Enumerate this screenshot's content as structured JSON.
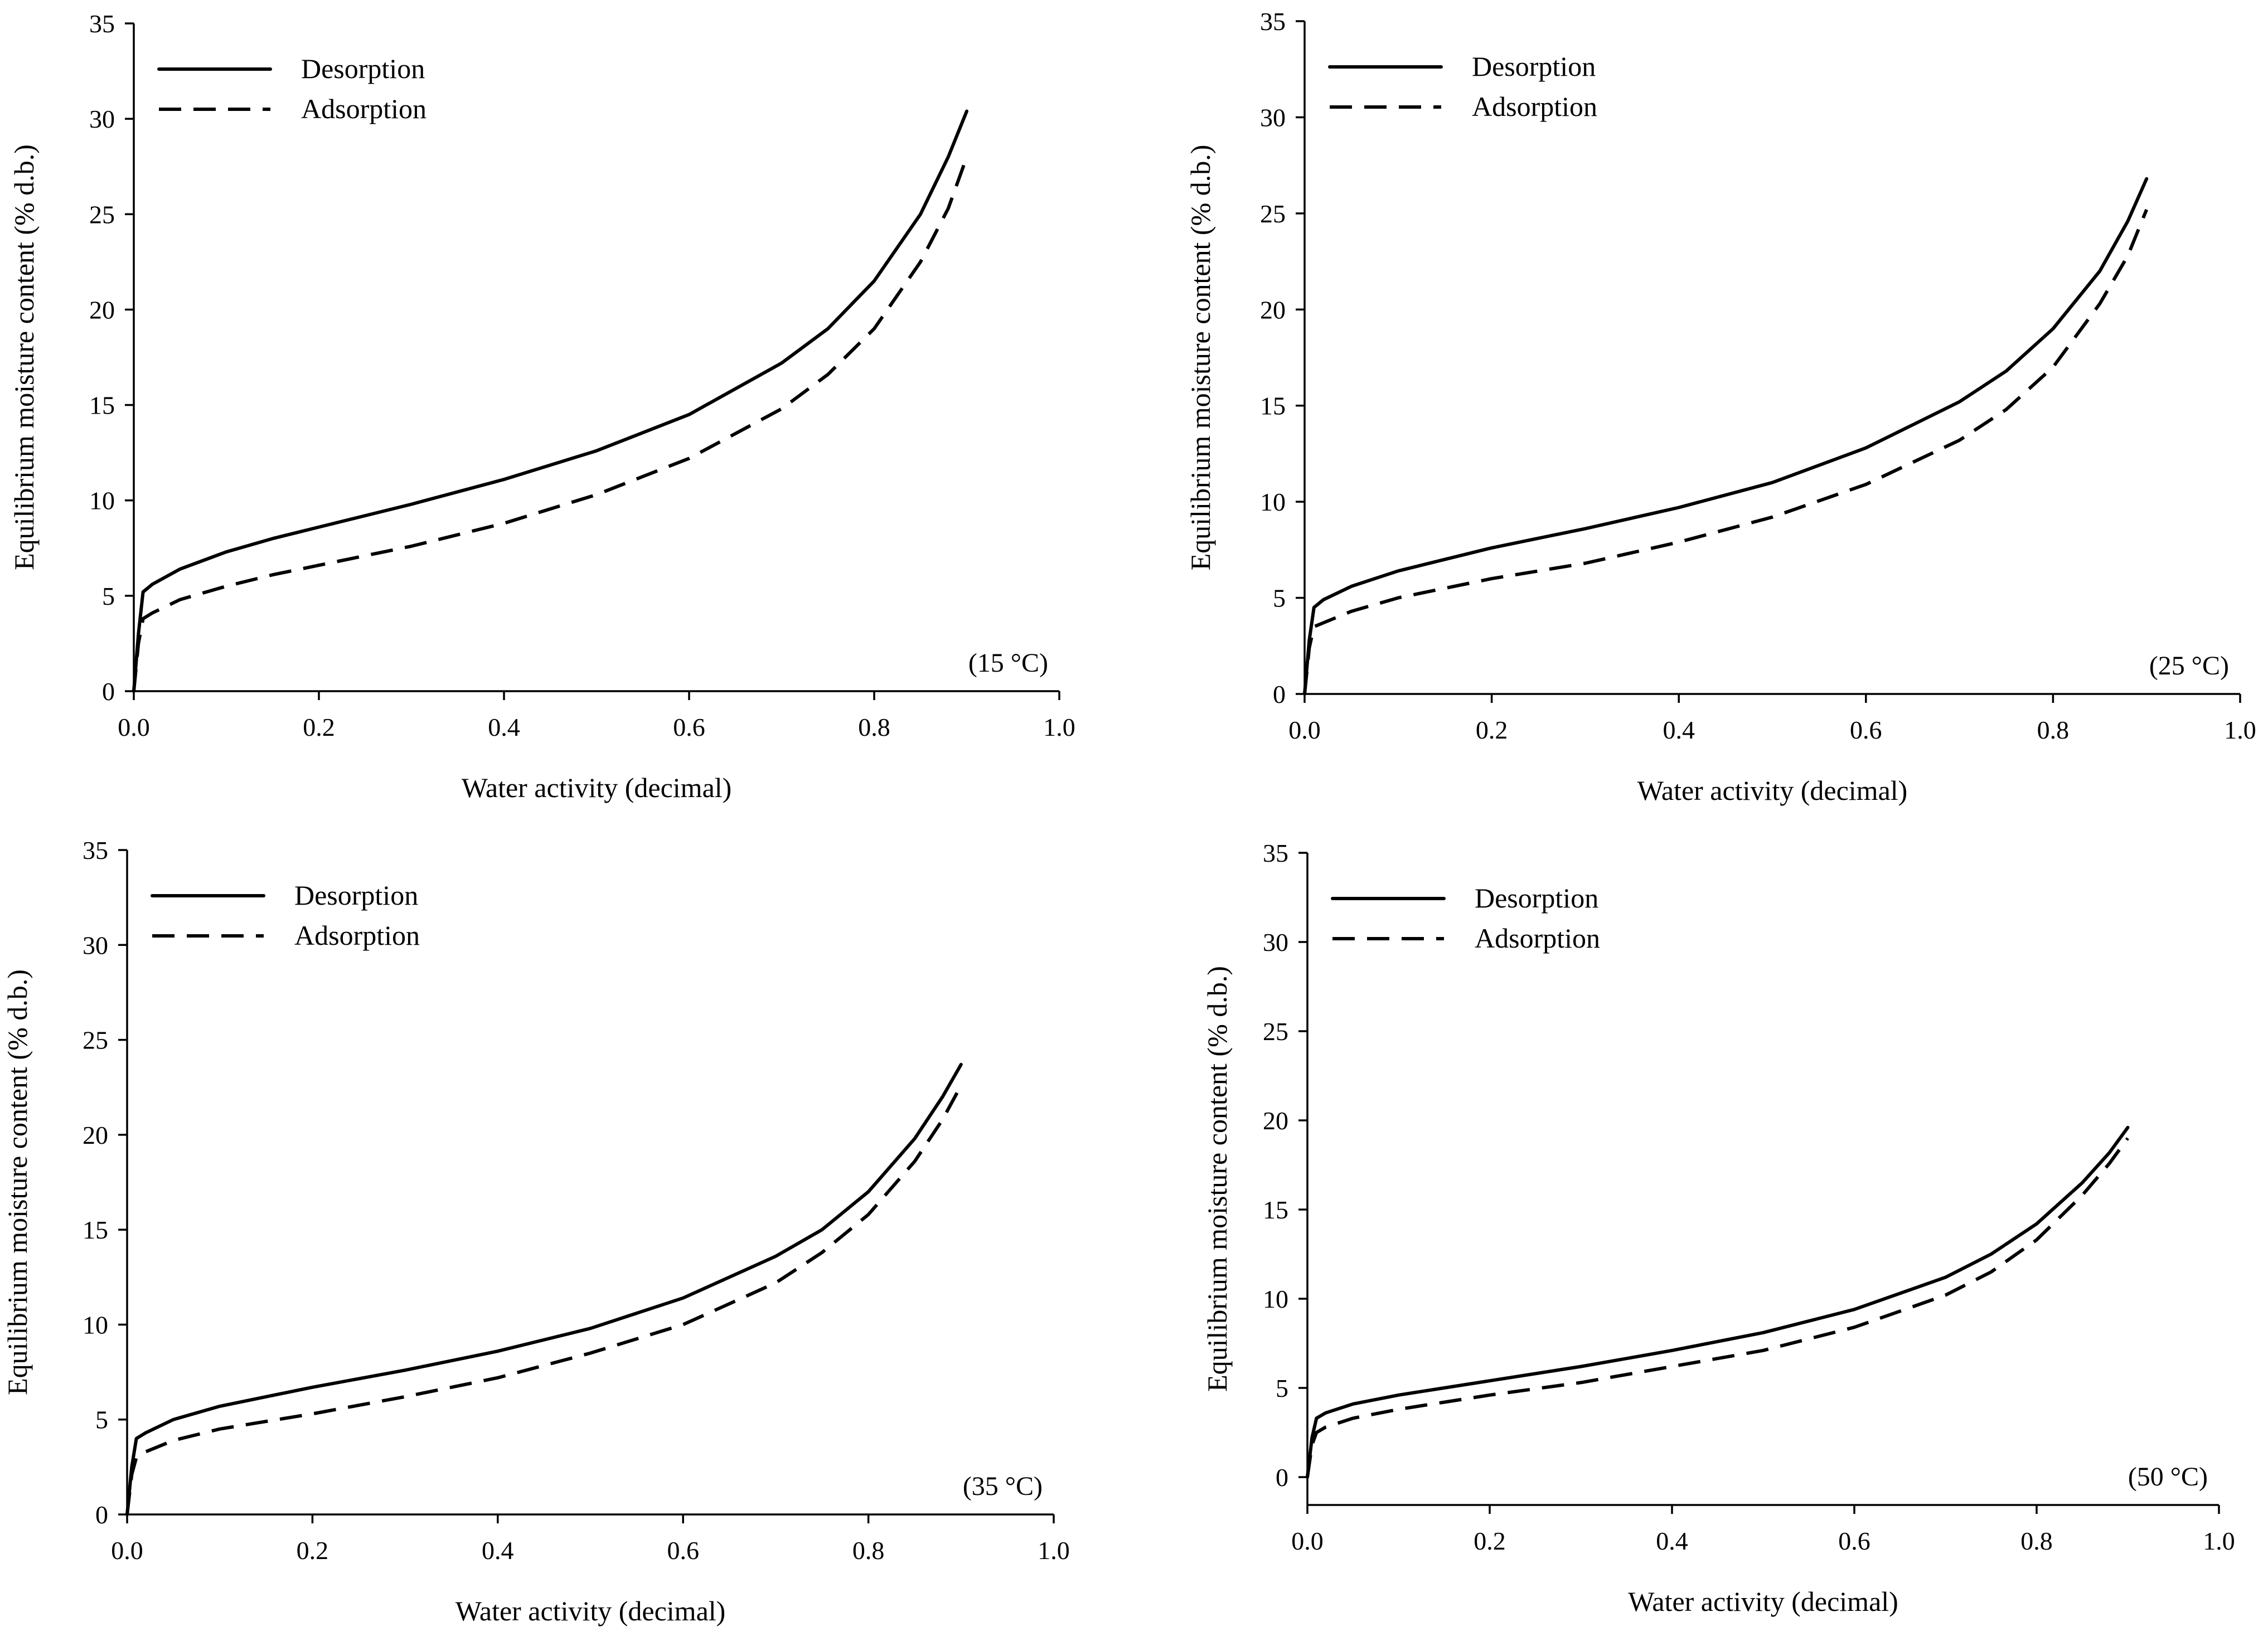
{
  "chart_data": [
    {
      "type": "line",
      "xlabel": "Water activity (decimal)",
      "ylabel": "Equilibrium moisture content (% d.b.)",
      "xlim": [
        0,
        1.0
      ],
      "ylim": [
        0,
        35
      ],
      "xticks": [
        "0.0",
        "0.2",
        "0.4",
        "0.6",
        "0.8",
        "1.0"
      ],
      "yticks": [
        "0",
        "5",
        "10",
        "15",
        "20",
        "25",
        "30",
        "35"
      ],
      "annotation": "(15 °C)",
      "legend": "top-left",
      "series": [
        {
          "name": "Desorption",
          "style": "solid",
          "x": [
            0,
            0.005,
            0.01,
            0.02,
            0.05,
            0.1,
            0.15,
            0.2,
            0.3,
            0.4,
            0.5,
            0.6,
            0.7,
            0.75,
            0.8,
            0.85,
            0.88,
            0.9
          ],
          "y": [
            0,
            3.0,
            5.2,
            5.6,
            6.4,
            7.3,
            8.0,
            8.6,
            9.8,
            11.1,
            12.6,
            14.5,
            17.2,
            19.0,
            21.5,
            25.0,
            28.0,
            30.4
          ]
        },
        {
          "name": "Adsorption",
          "style": "dashed",
          "x": [
            0,
            0.005,
            0.01,
            0.02,
            0.05,
            0.1,
            0.15,
            0.2,
            0.3,
            0.4,
            0.5,
            0.6,
            0.7,
            0.75,
            0.8,
            0.85,
            0.88,
            0.9
          ],
          "y": [
            0,
            2.5,
            3.8,
            4.1,
            4.8,
            5.5,
            6.1,
            6.6,
            7.6,
            8.8,
            10.3,
            12.2,
            14.8,
            16.6,
            19.0,
            22.5,
            25.3,
            28.0
          ]
        }
      ]
    },
    {
      "type": "line",
      "xlabel": "Water activity (decimal)",
      "ylabel": "Equilibrium moisture content (% d.b.)",
      "xlim": [
        0,
        1.0
      ],
      "ylim": [
        0,
        35
      ],
      "xticks": [
        "0.0",
        "0.2",
        "0.4",
        "0.6",
        "0.8",
        "1.0"
      ],
      "yticks": [
        "0",
        "5",
        "10",
        "15",
        "20",
        "25",
        "30",
        "35"
      ],
      "annotation": "(25 °C)",
      "legend": "top-left",
      "series": [
        {
          "name": "Desorption",
          "style": "solid",
          "x": [
            0,
            0.005,
            0.01,
            0.02,
            0.05,
            0.1,
            0.15,
            0.2,
            0.3,
            0.4,
            0.5,
            0.6,
            0.7,
            0.75,
            0.8,
            0.85,
            0.88,
            0.9
          ],
          "y": [
            0,
            2.8,
            4.5,
            4.9,
            5.6,
            6.4,
            7.0,
            7.6,
            8.6,
            9.7,
            11.0,
            12.8,
            15.2,
            16.8,
            19.0,
            22.0,
            24.6,
            26.8
          ]
        },
        {
          "name": "Adsorption",
          "style": "dashed",
          "x": [
            0,
            0.005,
            0.01,
            0.02,
            0.05,
            0.1,
            0.15,
            0.2,
            0.3,
            0.4,
            0.5,
            0.6,
            0.7,
            0.75,
            0.8,
            0.85,
            0.88,
            0.9
          ],
          "y": [
            0,
            2.4,
            3.5,
            3.7,
            4.3,
            5.0,
            5.5,
            6.0,
            6.8,
            7.9,
            9.2,
            10.9,
            13.2,
            14.8,
            17.0,
            20.3,
            22.8,
            25.2
          ]
        }
      ]
    },
    {
      "type": "line",
      "xlabel": "Water activity (decimal)",
      "ylabel": "Equilibrium moisture content (% d.b.)",
      "xlim": [
        0,
        1.0
      ],
      "ylim": [
        0,
        35
      ],
      "xticks": [
        "0.0",
        "0.2",
        "0.4",
        "0.6",
        "0.8",
        "1.0"
      ],
      "yticks": [
        "0",
        "5",
        "10",
        "15",
        "20",
        "25",
        "30",
        "35"
      ],
      "annotation": "(35 °C)",
      "legend": "top-left",
      "series": [
        {
          "name": "Desorption",
          "style": "solid",
          "x": [
            0,
            0.005,
            0.01,
            0.02,
            0.05,
            0.1,
            0.15,
            0.2,
            0.3,
            0.4,
            0.5,
            0.6,
            0.7,
            0.75,
            0.8,
            0.85,
            0.88,
            0.9
          ],
          "y": [
            0,
            2.5,
            4.0,
            4.3,
            5.0,
            5.7,
            6.2,
            6.7,
            7.6,
            8.6,
            9.8,
            11.4,
            13.6,
            15.0,
            17.0,
            19.8,
            22.0,
            23.7
          ]
        },
        {
          "name": "Adsorption",
          "style": "dashed",
          "x": [
            0,
            0.005,
            0.01,
            0.02,
            0.05,
            0.1,
            0.15,
            0.2,
            0.3,
            0.4,
            0.5,
            0.6,
            0.7,
            0.75,
            0.8,
            0.85,
            0.88,
            0.9
          ],
          "y": [
            0,
            2.1,
            3.0,
            3.3,
            3.9,
            4.5,
            4.9,
            5.3,
            6.2,
            7.2,
            8.5,
            10.0,
            12.2,
            13.8,
            15.8,
            18.6,
            20.8,
            22.6
          ]
        }
      ]
    },
    {
      "type": "line",
      "xlabel": "Water activity (decimal)",
      "ylabel": "Equilibrium moisture content (% d.b.)",
      "xlim": [
        0,
        1.0
      ],
      "ylim": [
        -2,
        35
      ],
      "xticks": [
        "0.0",
        "0.2",
        "0.4",
        "0.6",
        "0.8",
        "1.0"
      ],
      "yticks": [
        "0",
        "5",
        "10",
        "15",
        "20",
        "25",
        "30",
        "35"
      ],
      "annotation": "(50 °C)",
      "legend": "top-left",
      "series": [
        {
          "name": "Desorption",
          "style": "solid",
          "x": [
            0,
            0.005,
            0.01,
            0.02,
            0.05,
            0.1,
            0.15,
            0.2,
            0.3,
            0.4,
            0.5,
            0.6,
            0.7,
            0.75,
            0.8,
            0.85,
            0.88,
            0.9
          ],
          "y": [
            0,
            2.2,
            3.3,
            3.6,
            4.1,
            4.6,
            5.0,
            5.4,
            6.2,
            7.1,
            8.1,
            9.4,
            11.2,
            12.5,
            14.2,
            16.5,
            18.2,
            19.6
          ]
        },
        {
          "name": "Adsorption",
          "style": "dashed",
          "x": [
            0,
            0.005,
            0.01,
            0.02,
            0.05,
            0.1,
            0.15,
            0.2,
            0.3,
            0.4,
            0.5,
            0.6,
            0.7,
            0.75,
            0.8,
            0.85,
            0.88,
            0.9
          ],
          "y": [
            0,
            1.8,
            2.5,
            2.8,
            3.3,
            3.8,
            4.2,
            4.6,
            5.3,
            6.2,
            7.1,
            8.4,
            10.2,
            11.5,
            13.3,
            15.8,
            17.6,
            19.0
          ]
        }
      ]
    }
  ]
}
